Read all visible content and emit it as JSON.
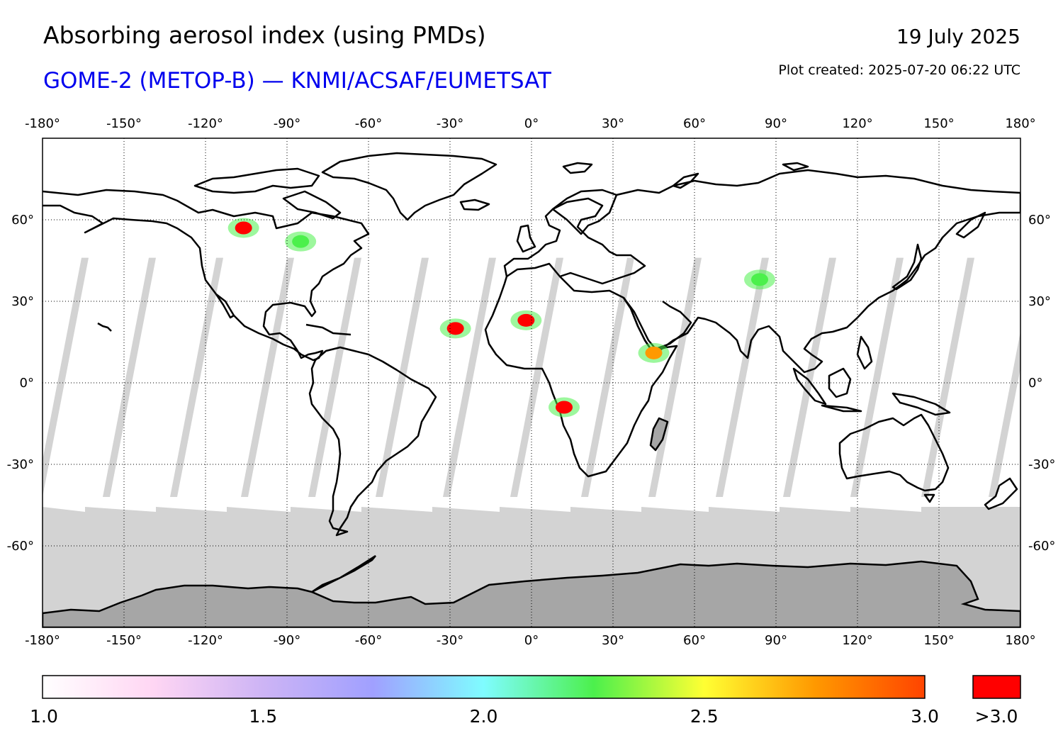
{
  "title": "Absorbing aerosol index (using PMDs)",
  "subtitle": "GOME-2 (METOP-B) — KNMI/ACSAF/EUMETSAT",
  "date": "19 July 2025",
  "plot_created": "Plot created: 2025-07-20 06:22 UTC",
  "colors": {
    "subtitle": "#0000ee",
    "no_data": "#d3d3d3",
    "land_no_data": "#a6a6a6",
    "coast": "#000000"
  },
  "map": {
    "lon_ticks": [
      -180,
      -150,
      -120,
      -90,
      -60,
      -30,
      0,
      30,
      60,
      90,
      120,
      150,
      180
    ],
    "lat_ticks": [
      60,
      30,
      0,
      -30,
      -60
    ],
    "lon_range": [
      -180,
      180
    ],
    "lat_range": [
      -90,
      90
    ],
    "grid": "dotted",
    "tick_suffix": "°",
    "aerosol_plumes": [
      {
        "name": "canada-smoke",
        "lon": -106,
        "lat": 57,
        "value": 3.2
      },
      {
        "name": "canada-smoke-tail",
        "lon": -85,
        "lat": 52,
        "value": 2.2
      },
      {
        "name": "atlantic-dust",
        "lon": -28,
        "lat": 20,
        "value": 3.1
      },
      {
        "name": "sahara-dust",
        "lon": -2,
        "lat": 23,
        "value": 3.3
      },
      {
        "name": "central-africa-fires",
        "lon": 12,
        "lat": -9,
        "value": 3.2
      },
      {
        "name": "arabian-dust",
        "lon": 45,
        "lat": 11,
        "value": 2.8
      },
      {
        "name": "central-asia-dust",
        "lon": 84,
        "lat": 38,
        "value": 2.3
      }
    ]
  },
  "colorbar": {
    "ticks": [
      "1.0",
      "1.5",
      "2.0",
      "2.5",
      "3.0"
    ],
    "min": 1.0,
    "max": 3.0,
    "stops": [
      "#ffffff",
      "#ffd6f3",
      "#cdb4f5",
      "#a0a0ff",
      "#7ffcff",
      "#4cf04c",
      "#ffff33",
      "#ff9900",
      "#ff4400"
    ],
    "overflow_label": ">3.0",
    "overflow_color": "#ff0000"
  }
}
